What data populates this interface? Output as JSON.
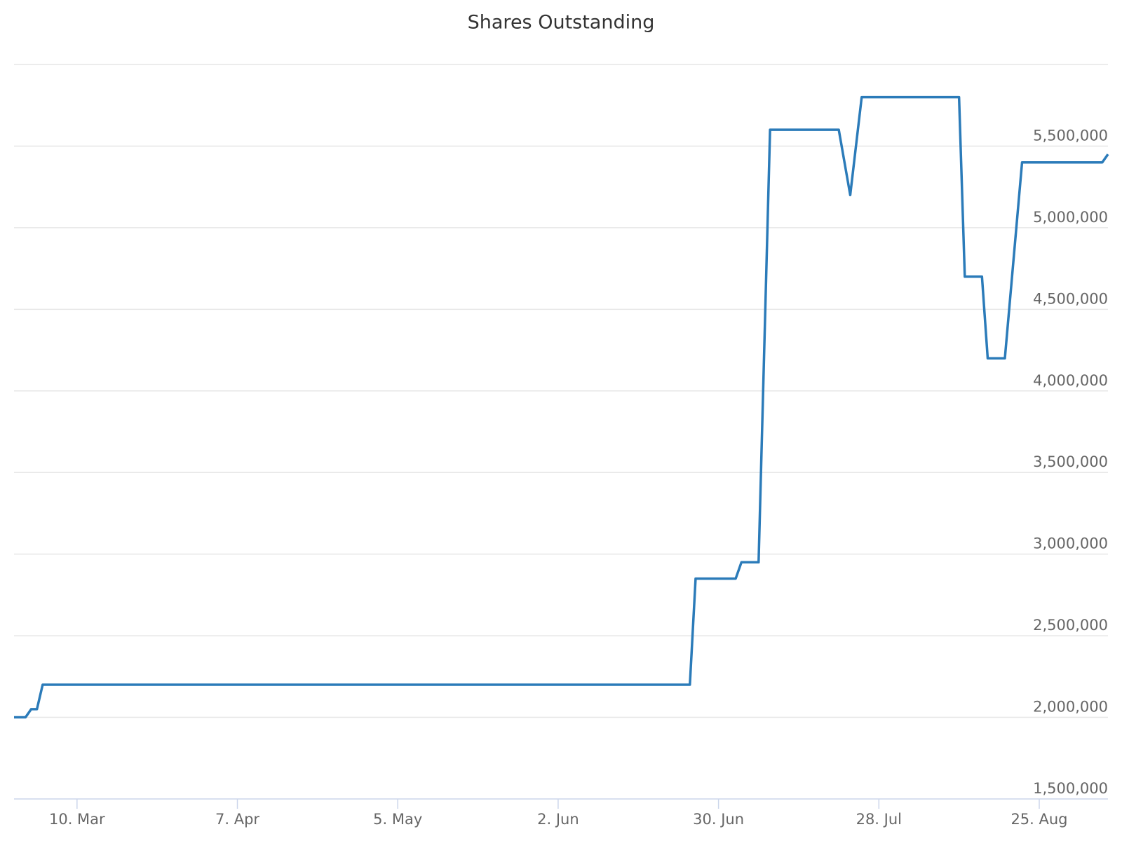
{
  "chart_data": {
    "type": "line",
    "title": "Shares Outstanding",
    "x": [
      "02-27",
      "03-01",
      "03-02",
      "03-03",
      "03-04",
      "06-25",
      "06-26",
      "07-03",
      "07-04",
      "07-07",
      "07-09",
      "07-21",
      "07-23",
      "07-25",
      "08-11",
      "08-12",
      "08-15",
      "08-16",
      "08-19",
      "08-22",
      "09-05",
      "09-06"
    ],
    "values": [
      2000000,
      2000000,
      2050000,
      2050000,
      2200000,
      2200000,
      2850000,
      2850000,
      2950000,
      2950000,
      5600000,
      5600000,
      5200000,
      5800000,
      5800000,
      4700000,
      4700000,
      4200000,
      4200000,
      5400000,
      5400000,
      5450000
    ],
    "color": "#2b7bb9",
    "xlim": [
      "02-27",
      "09-06"
    ],
    "xticks": [
      {
        "value": "03-10",
        "label": "10. Mar"
      },
      {
        "value": "04-07",
        "label": "7. Apr"
      },
      {
        "value": "05-05",
        "label": "5. May"
      },
      {
        "value": "06-02",
        "label": "2. Jun"
      },
      {
        "value": "06-30",
        "label": "30. Jun"
      },
      {
        "value": "07-28",
        "label": "28. Jul"
      },
      {
        "value": "08-25",
        "label": "25. Aug"
      }
    ],
    "ylim": [
      1500000,
      6000000
    ],
    "yticks": [
      {
        "value": 1500000,
        "label": "1,500,000"
      },
      {
        "value": 2000000,
        "label": "2,000,000"
      },
      {
        "value": 2500000,
        "label": "2,500,000"
      },
      {
        "value": 3000000,
        "label": "3,000,000"
      },
      {
        "value": 3500000,
        "label": "3,500,000"
      },
      {
        "value": 4000000,
        "label": "4,000,000"
      },
      {
        "value": 4500000,
        "label": "4,500,000"
      },
      {
        "value": 5000000,
        "label": "5,000,000"
      },
      {
        "value": 5500000,
        "label": "5,500,000"
      }
    ],
    "grid": true
  }
}
